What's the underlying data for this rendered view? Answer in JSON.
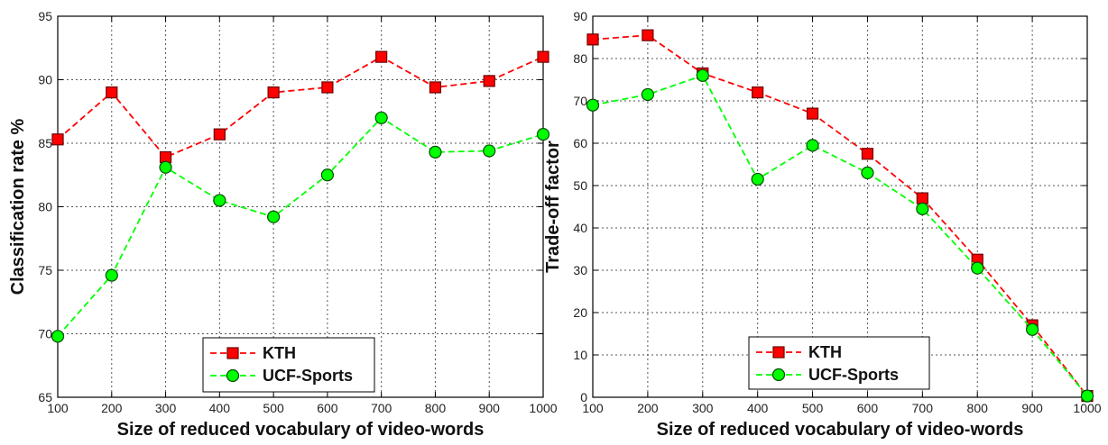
{
  "chart_data": [
    {
      "type": "line",
      "title": "",
      "xlabel": "Size of reduced vocabulary of video-words",
      "ylabel": "Classification rate %",
      "x": [
        100,
        200,
        300,
        400,
        500,
        600,
        700,
        800,
        900,
        1000
      ],
      "xlim": [
        100,
        1000
      ],
      "ylim": [
        65,
        95
      ],
      "xticks": [
        100,
        200,
        300,
        400,
        500,
        600,
        700,
        800,
        900,
        1000
      ],
      "yticks": [
        65,
        70,
        75,
        80,
        85,
        90,
        95
      ],
      "grid": true,
      "legend_position": "bottom-center",
      "series": [
        {
          "name": "KTH",
          "color": "#ff0000",
          "marker": "square",
          "linestyle": "dashed",
          "values": [
            85.3,
            89.0,
            83.9,
            85.7,
            89.0,
            89.4,
            91.8,
            89.4,
            89.9,
            91.8
          ]
        },
        {
          "name": "UCF-Sports",
          "color": "#00ff00",
          "marker": "circle",
          "linestyle": "dashed",
          "values": [
            69.8,
            74.6,
            83.1,
            80.5,
            79.2,
            82.5,
            87.0,
            84.3,
            84.4,
            85.7
          ]
        }
      ]
    },
    {
      "type": "line",
      "title": "",
      "xlabel": "Size of reduced vocabulary of video-words",
      "ylabel": "Trade-off factor",
      "x": [
        100,
        200,
        300,
        400,
        500,
        600,
        700,
        800,
        900,
        1000
      ],
      "xlim": [
        100,
        1000
      ],
      "ylim": [
        0,
        90
      ],
      "xticks": [
        100,
        200,
        300,
        400,
        500,
        600,
        700,
        800,
        900,
        1000
      ],
      "yticks": [
        0,
        10,
        20,
        30,
        40,
        50,
        60,
        70,
        80,
        90
      ],
      "grid": true,
      "legend_position": "bottom-left",
      "series": [
        {
          "name": "KTH",
          "color": "#ff0000",
          "marker": "square",
          "linestyle": "dashed",
          "values": [
            84.5,
            85.5,
            76.5,
            72.0,
            67.0,
            57.5,
            47.0,
            32.5,
            17.0,
            0.3
          ]
        },
        {
          "name": "UCF-Sports",
          "color": "#00ff00",
          "marker": "circle",
          "linestyle": "dashed",
          "values": [
            69.0,
            71.5,
            76.0,
            51.5,
            59.5,
            53.0,
            44.5,
            30.5,
            16.0,
            0.3
          ]
        }
      ]
    }
  ]
}
